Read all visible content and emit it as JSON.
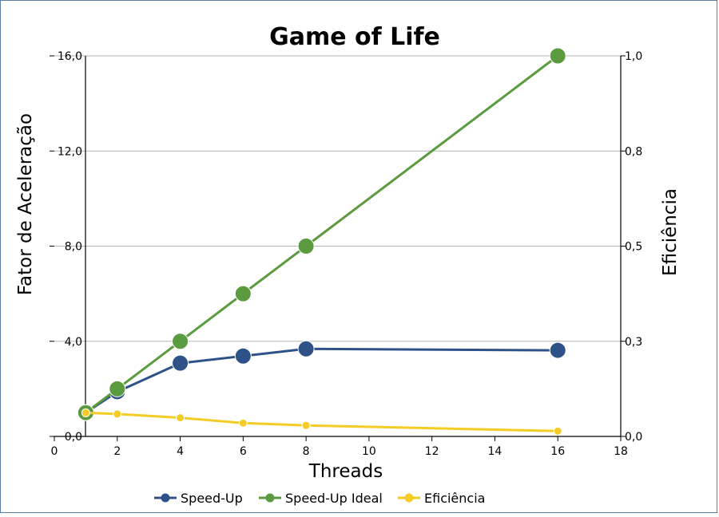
{
  "chart_data": {
    "type": "line",
    "title": "Game of Life",
    "xlabel": "Threads",
    "ylabel": "Fator de Aceleração",
    "y2label": "Eficiência",
    "xlim": [
      0,
      18
    ],
    "xticks": [
      0,
      2,
      4,
      6,
      8,
      10,
      12,
      14,
      16,
      18
    ],
    "ylim": [
      0,
      16
    ],
    "yticks": [
      0,
      4,
      8,
      12,
      16
    ],
    "ytick_labels": [
      "0,0",
      "4,0",
      "8,0",
      "12,0",
      "16,0"
    ],
    "y2lim": [
      0,
      1
    ],
    "y2ticks": [
      0,
      0.25,
      0.5,
      0.75,
      1
    ],
    "y2tick_labels": [
      "0,0",
      "0,3",
      "0,5",
      "0,8",
      "1,0"
    ],
    "grid": true,
    "legend": "bottom",
    "series": [
      {
        "name": "Speed-Up",
        "axis": "left",
        "color": "#2e5288",
        "marker": "large",
        "x": [
          1,
          2,
          4,
          6,
          8,
          16
        ],
        "y": [
          1.0,
          1.88,
          3.08,
          3.38,
          3.68,
          3.62
        ]
      },
      {
        "name": "Speed-Up Ideal",
        "axis": "left",
        "color": "#5b9a3f",
        "marker": "large",
        "x": [
          1,
          2,
          4,
          6,
          8,
          16
        ],
        "y": [
          1,
          2,
          4,
          6,
          8,
          16
        ]
      },
      {
        "name": "Eficiência",
        "axis": "right",
        "color": "#f5cc25",
        "marker": "small",
        "x": [
          1,
          2,
          4,
          6,
          8,
          16
        ],
        "y": [
          0.062,
          0.059,
          0.049,
          0.035,
          0.029,
          0.014
        ]
      }
    ]
  }
}
